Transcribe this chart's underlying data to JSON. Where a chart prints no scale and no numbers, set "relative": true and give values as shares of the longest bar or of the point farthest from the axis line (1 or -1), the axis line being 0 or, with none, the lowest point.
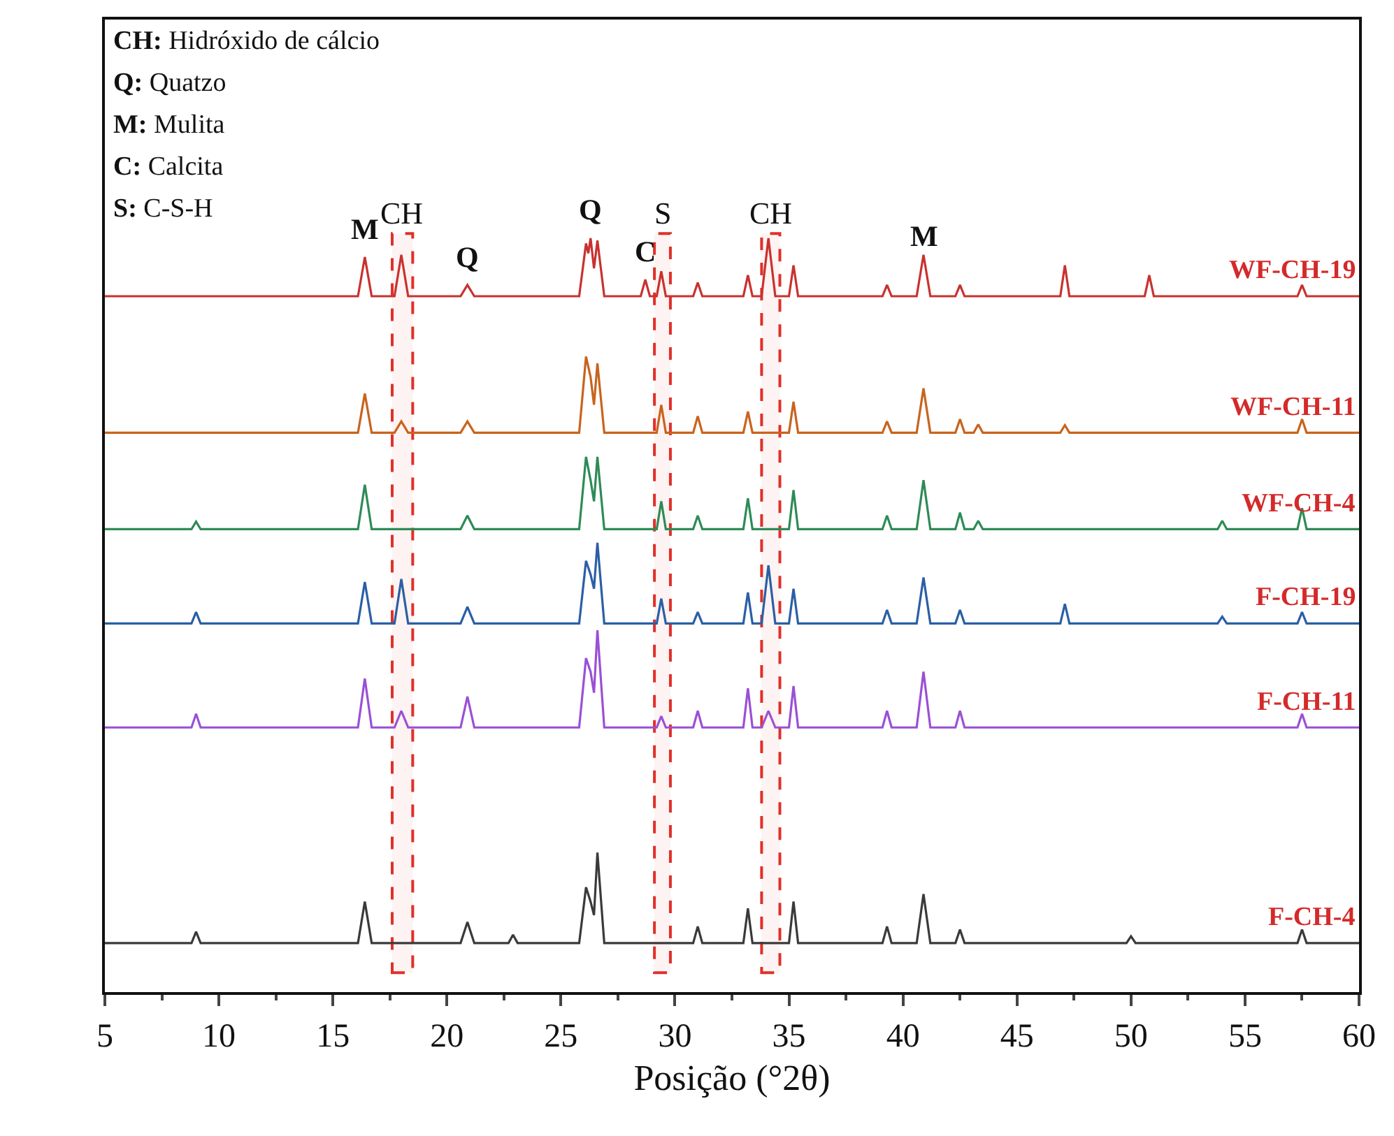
{
  "chart_data": {
    "type": "line",
    "relative": true,
    "xlabel": "Posição (°2θ)",
    "xlim": [
      5,
      60
    ],
    "xticks": [
      5,
      10,
      15,
      20,
      25,
      30,
      35,
      40,
      45,
      50,
      55,
      60
    ],
    "legend": false,
    "grid": false,
    "marker": "none",
    "line_style": "solid",
    "series": [
      {
        "name": "WF-CH-19",
        "color": "#c8322f",
        "x": [
          5,
          16.1,
          16.4,
          16.7,
          17.7,
          18.0,
          18.3,
          20.6,
          20.9,
          21.2,
          25.8,
          26.1,
          26.2,
          26.3,
          26.45,
          26.6,
          26.9,
          28.5,
          28.7,
          28.9,
          29.2,
          29.4,
          29.6,
          30.8,
          31.0,
          31.2,
          33.0,
          33.2,
          33.4,
          33.8,
          34.1,
          34.4,
          35.0,
          35.2,
          35.4,
          39.1,
          39.3,
          39.5,
          40.6,
          40.9,
          41.2,
          42.3,
          42.5,
          42.7,
          46.9,
          47.1,
          47.3,
          50.6,
          50.8,
          51.0,
          57.3,
          57.5,
          57.7,
          60
        ],
        "values": [
          0.923,
          0.923,
          0.975,
          0.923,
          0.923,
          0.978,
          0.923,
          0.923,
          0.938,
          0.923,
          0.923,
          0.993,
          0.98,
          1.0,
          0.96,
          0.997,
          0.923,
          0.923,
          0.945,
          0.923,
          0.923,
          0.956,
          0.923,
          0.923,
          0.941,
          0.923,
          0.923,
          0.951,
          0.923,
          0.923,
          1.0,
          0.923,
          0.923,
          0.964,
          0.923,
          0.923,
          0.938,
          0.923,
          0.923,
          0.978,
          0.923,
          0.923,
          0.938,
          0.923,
          0.923,
          0.964,
          0.923,
          0.923,
          0.951,
          0.923,
          0.923,
          0.938,
          0.923,
          0.923
        ]
      },
      {
        "name": "WF-CH-11",
        "color": "#c8641e",
        "x": [
          5,
          16.1,
          16.4,
          16.7,
          17.7,
          18,
          18.3,
          20.6,
          20.9,
          21.2,
          25.8,
          26.1,
          26.3,
          26.45,
          26.6,
          26.9,
          29.2,
          29.4,
          29.6,
          30.8,
          31,
          31.2,
          33,
          33.2,
          33.4,
          35,
          35.2,
          35.4,
          39.1,
          39.3,
          39.5,
          40.6,
          40.9,
          41.2,
          42.3,
          42.5,
          42.7,
          43.1,
          43.3,
          43.5,
          46.9,
          47.1,
          47.3,
          57.3,
          57.5,
          57.7,
          60
        ],
        "values": [
          0.742,
          0.742,
          0.794,
          0.742,
          0.742,
          0.757,
          0.742,
          0.742,
          0.757,
          0.742,
          0.742,
          0.843,
          0.816,
          0.779,
          0.834,
          0.742,
          0.742,
          0.779,
          0.742,
          0.742,
          0.764,
          0.742,
          0.742,
          0.77,
          0.742,
          0.742,
          0.783,
          0.742,
          0.742,
          0.757,
          0.742,
          0.742,
          0.801,
          0.742,
          0.742,
          0.76,
          0.742,
          0.742,
          0.753,
          0.742,
          0.742,
          0.752,
          0.742,
          0.742,
          0.76,
          0.742,
          0.742
        ]
      },
      {
        "name": "WF-CH-4",
        "color": "#2e8b57",
        "x": [
          5,
          8.8,
          9,
          9.2,
          16.1,
          16.4,
          16.7,
          20.6,
          20.9,
          21.2,
          25.8,
          26.1,
          26.3,
          26.45,
          26.6,
          26.9,
          29.2,
          29.4,
          29.6,
          30.8,
          31,
          31.2,
          33,
          33.2,
          33.4,
          35,
          35.2,
          35.4,
          39.1,
          39.3,
          39.5,
          40.6,
          40.9,
          41.2,
          42.3,
          42.5,
          42.7,
          43.1,
          43.3,
          43.5,
          53.8,
          54,
          54.2,
          57.3,
          57.5,
          57.7,
          60
        ],
        "values": [
          0.614,
          0.614,
          0.624,
          0.614,
          0.614,
          0.673,
          0.614,
          0.614,
          0.632,
          0.614,
          0.614,
          0.71,
          0.679,
          0.651,
          0.71,
          0.614,
          0.614,
          0.651,
          0.614,
          0.614,
          0.632,
          0.614,
          0.614,
          0.655,
          0.614,
          0.614,
          0.666,
          0.614,
          0.614,
          0.632,
          0.614,
          0.614,
          0.679,
          0.614,
          0.614,
          0.636,
          0.614,
          0.614,
          0.625,
          0.614,
          0.614,
          0.625,
          0.614,
          0.614,
          0.642,
          0.614,
          0.614
        ]
      },
      {
        "name": "F-CH-19",
        "color": "#2b5fa6",
        "x": [
          5,
          8.8,
          9,
          9.2,
          16.1,
          16.4,
          16.7,
          17.7,
          18,
          18.3,
          20.6,
          20.9,
          21.2,
          25.8,
          26.1,
          26.3,
          26.45,
          26.6,
          26.9,
          29.2,
          29.4,
          29.6,
          30.8,
          31,
          31.2,
          33,
          33.2,
          33.4,
          33.8,
          34.1,
          34.4,
          35,
          35.2,
          35.4,
          39.1,
          39.3,
          39.5,
          40.6,
          40.9,
          41.2,
          42.3,
          42.5,
          42.7,
          46.9,
          47.1,
          47.3,
          53.8,
          54,
          54.2,
          57.3,
          57.5,
          57.7,
          60
        ],
        "values": [
          0.489,
          0.489,
          0.504,
          0.489,
          0.489,
          0.544,
          0.489,
          0.489,
          0.548,
          0.489,
          0.489,
          0.511,
          0.489,
          0.489,
          0.572,
          0.554,
          0.535,
          0.596,
          0.489,
          0.489,
          0.522,
          0.489,
          0.489,
          0.504,
          0.489,
          0.489,
          0.53,
          0.489,
          0.489,
          0.566,
          0.489,
          0.489,
          0.535,
          0.489,
          0.489,
          0.507,
          0.489,
          0.489,
          0.55,
          0.489,
          0.489,
          0.507,
          0.489,
          0.489,
          0.515,
          0.489,
          0.489,
          0.498,
          0.489,
          0.489,
          0.504,
          0.489,
          0.489
        ]
      },
      {
        "name": "F-CH-11",
        "color": "#9b4fd6",
        "x": [
          5,
          8.8,
          9,
          9.2,
          16.1,
          16.4,
          16.7,
          17.7,
          18,
          18.3,
          20.6,
          20.9,
          21.2,
          25.8,
          26.1,
          26.3,
          26.45,
          26.6,
          26.9,
          29.2,
          29.4,
          29.6,
          30.8,
          31,
          31.2,
          33,
          33.2,
          33.4,
          33.8,
          34.1,
          34.4,
          35,
          35.2,
          35.4,
          39.1,
          39.3,
          39.5,
          40.6,
          40.9,
          41.2,
          42.3,
          42.5,
          42.7,
          57.3,
          57.5,
          57.7,
          60
        ],
        "values": [
          0.351,
          0.351,
          0.369,
          0.351,
          0.351,
          0.416,
          0.351,
          0.351,
          0.373,
          0.351,
          0.351,
          0.392,
          0.351,
          0.351,
          0.443,
          0.425,
          0.397,
          0.48,
          0.351,
          0.351,
          0.366,
          0.351,
          0.351,
          0.373,
          0.351,
          0.351,
          0.403,
          0.351,
          0.351,
          0.373,
          0.351,
          0.351,
          0.406,
          0.351,
          0.351,
          0.373,
          0.351,
          0.351,
          0.425,
          0.351,
          0.351,
          0.373,
          0.351,
          0.351,
          0.369,
          0.351,
          0.351
        ]
      },
      {
        "name": "F-CH-4",
        "color": "#3a3a3a",
        "x": [
          5,
          8.8,
          9,
          9.2,
          16.1,
          16.4,
          16.7,
          20.6,
          20.9,
          21.2,
          22.7,
          22.9,
          23.1,
          25.8,
          26.1,
          26.3,
          26.45,
          26.6,
          26.9,
          30.8,
          31,
          31.2,
          33,
          33.2,
          33.4,
          35,
          35.2,
          35.4,
          39.1,
          39.3,
          39.5,
          40.6,
          40.9,
          41.2,
          42.3,
          42.5,
          42.7,
          49.8,
          50,
          50.2,
          57.3,
          57.5,
          57.7,
          60
        ],
        "values": [
          0.065,
          0.065,
          0.08,
          0.065,
          0.065,
          0.12,
          0.065,
          0.065,
          0.093,
          0.065,
          0.065,
          0.076,
          0.065,
          0.065,
          0.139,
          0.12,
          0.102,
          0.185,
          0.065,
          0.065,
          0.087,
          0.065,
          0.065,
          0.111,
          0.065,
          0.065,
          0.12,
          0.065,
          0.065,
          0.087,
          0.065,
          0.065,
          0.13,
          0.065,
          0.065,
          0.083,
          0.065,
          0.065,
          0.074,
          0.065,
          0.065,
          0.083,
          0.065,
          0.065
        ]
      }
    ],
    "bands": [
      {
        "axis": "x",
        "from": 17.6,
        "to": 18.5,
        "label": "CH",
        "color": "#e0302a"
      },
      {
        "axis": "x",
        "from": 29.1,
        "to": 29.8,
        "label": "S",
        "color": "#e0302a"
      },
      {
        "axis": "x",
        "from": 33.8,
        "to": 34.6,
        "label": "CH",
        "color": "#e0302a"
      }
    ],
    "annotations": [
      "CH: Hidróxido de cálcio",
      "Q: Quatzo",
      "M: Mulita",
      "C: Calcita",
      "S: C-S-H",
      {
        "text": "M",
        "x": 16.4,
        "y": 0.975
      },
      {
        "text": "Q",
        "x": 20.9,
        "y": 0.938
      },
      {
        "text": "Q",
        "x": 26.3,
        "y": 1.0
      },
      {
        "text": "C",
        "x": 28.7,
        "y": 0.945
      },
      {
        "text": "M",
        "x": 40.9,
        "y": 0.965
      }
    ]
  }
}
